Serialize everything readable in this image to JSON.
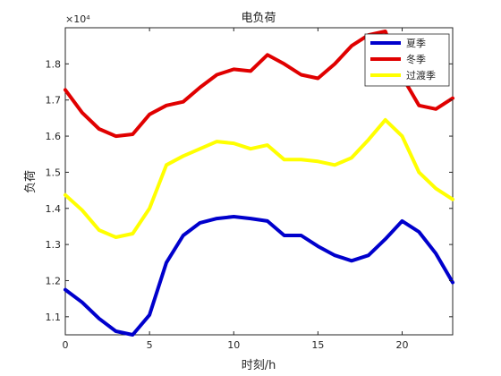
{
  "chart_data": {
    "type": "line",
    "title": "电负荷",
    "xlabel": "时刻/h",
    "ylabel": "负荷",
    "y_multiplier_label": "×10⁴",
    "xlim": [
      0,
      23
    ],
    "ylim": [
      1.05,
      1.9
    ],
    "xticks": [
      0,
      5,
      10,
      15,
      20
    ],
    "yticks": [
      1.1,
      1.2,
      1.3,
      1.4,
      1.5,
      1.6,
      1.7,
      1.8
    ],
    "ytick_labels": [
      "1.1",
      "1.2",
      "1.3",
      "1.4",
      "1.5",
      "1.6",
      "1.7",
      "1.8"
    ],
    "grid": false,
    "legend_position": "top-right",
    "x": [
      0,
      1,
      2,
      3,
      4,
      5,
      6,
      7,
      8,
      9,
      10,
      11,
      12,
      13,
      14,
      15,
      16,
      17,
      18,
      19,
      20,
      21,
      22,
      23
    ],
    "series": [
      {
        "name": "夏季",
        "color": "#0000cc",
        "values": [
          1.175,
          1.14,
          1.095,
          1.06,
          1.05,
          1.105,
          1.25,
          1.325,
          1.36,
          1.372,
          1.377,
          1.372,
          1.365,
          1.325,
          1.325,
          1.295,
          1.27,
          1.255,
          1.27,
          1.315,
          1.365,
          1.335,
          1.275,
          1.195
        ]
      },
      {
        "name": "冬季",
        "color": "#e00000",
        "values": [
          1.728,
          1.665,
          1.62,
          1.6,
          1.605,
          1.66,
          1.685,
          1.695,
          1.735,
          1.77,
          1.785,
          1.78,
          1.825,
          1.8,
          1.77,
          1.76,
          1.8,
          1.85,
          1.88,
          1.89,
          1.765,
          1.685,
          1.675,
          1.705
        ]
      },
      {
        "name": "过渡季",
        "color": "#ffff00",
        "values": [
          1.437,
          1.395,
          1.34,
          1.32,
          1.33,
          1.4,
          1.52,
          1.545,
          1.565,
          1.585,
          1.58,
          1.565,
          1.575,
          1.535,
          1.535,
          1.53,
          1.52,
          1.54,
          1.59,
          1.645,
          1.6,
          1.5,
          1.455,
          1.425
        ]
      }
    ]
  }
}
